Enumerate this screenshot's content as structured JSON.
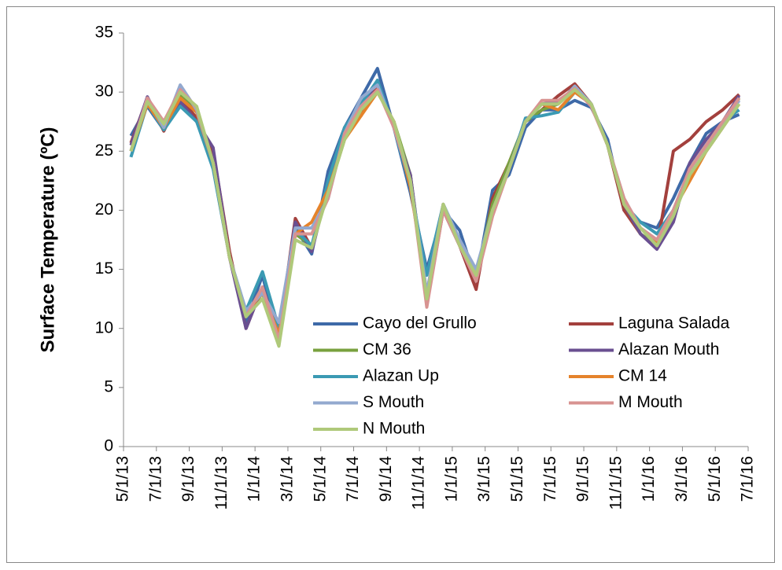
{
  "chart_data": {
    "type": "line",
    "ylabel": "Surface Temperature (ºC)",
    "x": [
      "2013-05",
      "2013-06",
      "2013-07",
      "2013-08",
      "2013-09",
      "2013-10",
      "2013-11",
      "2013-12",
      "2014-01",
      "2014-02",
      "2014-03",
      "2014-04",
      "2014-05",
      "2014-06",
      "2014-07",
      "2014-08",
      "2014-09",
      "2014-10",
      "2014-11",
      "2014-12",
      "2015-01",
      "2015-02",
      "2015-03",
      "2015-04",
      "2015-05",
      "2015-06",
      "2015-07",
      "2015-08",
      "2015-09",
      "2015-10",
      "2015-11",
      "2015-12",
      "2016-01",
      "2016-02",
      "2016-03",
      "2016-04",
      "2016-05",
      "2016-06"
    ],
    "xlim": [
      "2013-05",
      "2016-07"
    ],
    "xticks": [
      {
        "value": "2013-05",
        "label": "5/1/13"
      },
      {
        "value": "2013-07",
        "label": "7/1/13"
      },
      {
        "value": "2013-09",
        "label": "9/1/13"
      },
      {
        "value": "2013-11",
        "label": "11/1/13"
      },
      {
        "value": "2014-01",
        "label": "1/1/14"
      },
      {
        "value": "2014-03",
        "label": "3/1/14"
      },
      {
        "value": "2014-05",
        "label": "5/1/14"
      },
      {
        "value": "2014-07",
        "label": "7/1/14"
      },
      {
        "value": "2014-09",
        "label": "9/1/14"
      },
      {
        "value": "2014-11",
        "label": "11/1/14"
      },
      {
        "value": "2015-01",
        "label": "1/1/15"
      },
      {
        "value": "2015-03",
        "label": "3/1/15"
      },
      {
        "value": "2015-05",
        "label": "5/1/15"
      },
      {
        "value": "2015-07",
        "label": "7/1/15"
      },
      {
        "value": "2015-09",
        "label": "9/1/15"
      },
      {
        "value": "2015-11",
        "label": "11/1/15"
      },
      {
        "value": "2016-01",
        "label": "1/1/16"
      },
      {
        "value": "2016-03",
        "label": "3/1/16"
      },
      {
        "value": "2016-05",
        "label": "5/1/16"
      },
      {
        "value": "2016-07",
        "label": "7/1/16"
      }
    ],
    "ylim": [
      0,
      35
    ],
    "yticks": [
      0,
      5,
      10,
      15,
      20,
      25,
      30,
      35
    ],
    "grid": false,
    "legend": "center",
    "series": [
      {
        "name": "Cayo del Grullo",
        "color": "#3e6aa8",
        "values": [
          26.3,
          28.8,
          26.8,
          29,
          27.5,
          24.5,
          16,
          10.5,
          14.5,
          9,
          18.5,
          16.3,
          23.3,
          27,
          29.5,
          32,
          27,
          21.5,
          15,
          20,
          18.3,
          14,
          21.7,
          23,
          27,
          28.5,
          28.5,
          29.3,
          28.7,
          26,
          20,
          19,
          18.5,
          21,
          24,
          26.5,
          27.5,
          28.1
        ]
      },
      {
        "name": "Laguna Salada",
        "color": "#a3403d",
        "values": [
          25.7,
          29.5,
          26.7,
          29.5,
          27.8,
          25,
          16.5,
          10,
          13.5,
          9.5,
          19.3,
          16.8,
          22,
          26.5,
          28,
          30.7,
          27,
          23,
          12,
          20,
          17,
          13.3,
          21,
          24,
          27.5,
          28.5,
          29.7,
          30.7,
          29,
          25.5,
          20,
          18,
          16.8,
          25,
          26,
          27.5,
          28.5,
          29.8
        ]
      },
      {
        "name": "CM 36",
        "color": "#79a13f",
        "values": [
          25,
          29.3,
          27.5,
          29.8,
          28.5,
          24,
          16,
          11,
          13,
          9,
          18,
          17,
          21.5,
          26,
          28.5,
          30,
          27.5,
          23,
          12.5,
          20.5,
          17,
          14.5,
          20.5,
          24,
          27.5,
          28.5,
          29,
          30.5,
          29,
          25.5,
          20.5,
          18,
          17,
          20,
          23,
          25,
          27,
          29.5
        ]
      },
      {
        "name": "Alazan Mouth",
        "color": "#6a4f91",
        "values": [
          25.5,
          29.6,
          26.9,
          29.2,
          27.5,
          25.3,
          16,
          10,
          13.5,
          9.5,
          19,
          16.5,
          22,
          27,
          28.5,
          31,
          27,
          23,
          12.5,
          20,
          17,
          14,
          20,
          23.5,
          27.5,
          29,
          29.2,
          30.3,
          29,
          25.5,
          20.5,
          18,
          16.7,
          19,
          24,
          26,
          27.5,
          29.7
        ]
      },
      {
        "name": "Alazan Up",
        "color": "#3b9ab3",
        "values": [
          24.5,
          29,
          26.8,
          28.8,
          27.5,
          23.5,
          16,
          11.5,
          14.8,
          10,
          18.3,
          17,
          22.5,
          27,
          29,
          31,
          27,
          22,
          14.5,
          20.5,
          17.5,
          14.8,
          20,
          23.5,
          27.8,
          28,
          28.3,
          30,
          29,
          25.5,
          20.5,
          19,
          18,
          20,
          23.5,
          25.5,
          27.5,
          28.5
        ]
      },
      {
        "name": "CM 14",
        "color": "#e5832b",
        "values": [
          25,
          29,
          27,
          29.5,
          28.3,
          24,
          16,
          11.3,
          13,
          9.5,
          18,
          19,
          21.7,
          26,
          28,
          30,
          27.5,
          22,
          13,
          20.5,
          17,
          14.5,
          20,
          23.5,
          27.5,
          29,
          28.5,
          30,
          29,
          25.5,
          20.5,
          18.5,
          17.3,
          20,
          22.5,
          25,
          27,
          29
        ]
      },
      {
        "name": "S Mouth",
        "color": "#93a9cf",
        "values": [
          25,
          29.5,
          27,
          30.6,
          28.5,
          24,
          16,
          11.5,
          13,
          10.5,
          18.5,
          18.5,
          21,
          26.5,
          29.5,
          30.6,
          27,
          22.5,
          13,
          20.5,
          17.5,
          15,
          20,
          23.5,
          27.5,
          29,
          29,
          30.5,
          29,
          25.5,
          21,
          18.5,
          17.5,
          20,
          23.5,
          25.5,
          27,
          29.3
        ]
      },
      {
        "name": "M Mouth",
        "color": "#d89391",
        "values": [
          25,
          29.5,
          27.5,
          30.2,
          28.7,
          24,
          16,
          11,
          13.5,
          9,
          18,
          18,
          21,
          26.5,
          28.8,
          30.2,
          27,
          22.5,
          11.8,
          20,
          17,
          14,
          19.5,
          23.5,
          27.5,
          29.3,
          29.3,
          30.3,
          28.8,
          25.5,
          21,
          18.5,
          17.5,
          20,
          23.5,
          25.5,
          27.5,
          29.5
        ]
      },
      {
        "name": "N Mouth",
        "color": "#afc97a",
        "values": [
          25,
          29.2,
          27.3,
          30,
          28.8,
          24,
          16,
          11,
          12.5,
          8.5,
          17.5,
          16.8,
          21.5,
          26,
          28.5,
          30,
          27.5,
          22.5,
          12.5,
          20.5,
          17,
          14.5,
          20,
          23.5,
          27.5,
          29,
          29,
          30.2,
          29,
          25.5,
          20.5,
          18.5,
          17,
          19.5,
          23,
          25,
          27,
          29
        ]
      }
    ]
  }
}
